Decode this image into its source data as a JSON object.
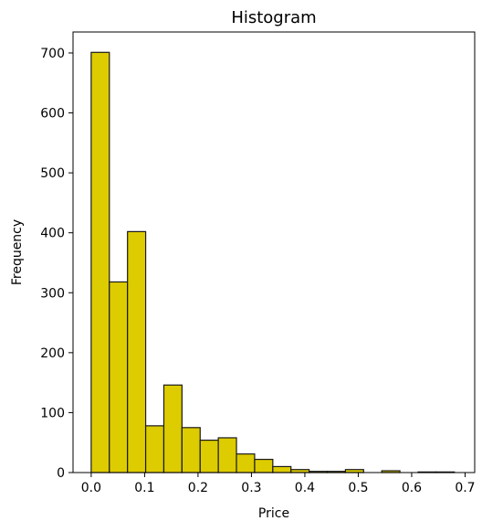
{
  "chart_data": {
    "type": "bar",
    "title": "Histogram",
    "xlabel": "Price",
    "ylabel": "Frequency",
    "xlim": [
      -0.034,
      0.718
    ],
    "ylim": [
      0,
      735
    ],
    "bin_edges": [
      0.0,
      0.034,
      0.068,
      0.102,
      0.136,
      0.17,
      0.204,
      0.238,
      0.272,
      0.306,
      0.34,
      0.374,
      0.408,
      0.442,
      0.476,
      0.51,
      0.544,
      0.578,
      0.612,
      0.646,
      0.68
    ],
    "values": [
      701,
      318,
      402,
      78,
      146,
      75,
      54,
      58,
      31,
      22,
      10,
      5,
      2,
      2,
      5,
      0,
      3,
      0,
      1,
      1
    ],
    "xticks": [
      "0.0",
      "0.1",
      "0.2",
      "0.3",
      "0.4",
      "0.5",
      "0.6",
      "0.7"
    ],
    "xtick_values": [
      0.0,
      0.1,
      0.2,
      0.3,
      0.4,
      0.5,
      0.6,
      0.7
    ],
    "yticks": [
      "0",
      "100",
      "200",
      "300",
      "400",
      "500",
      "600",
      "700"
    ],
    "ytick_values": [
      0,
      100,
      200,
      300,
      400,
      500,
      600,
      700
    ],
    "bar_color": "#ddcc00",
    "edge_color": "#1a1a1a",
    "grid": false,
    "legend": "none"
  }
}
